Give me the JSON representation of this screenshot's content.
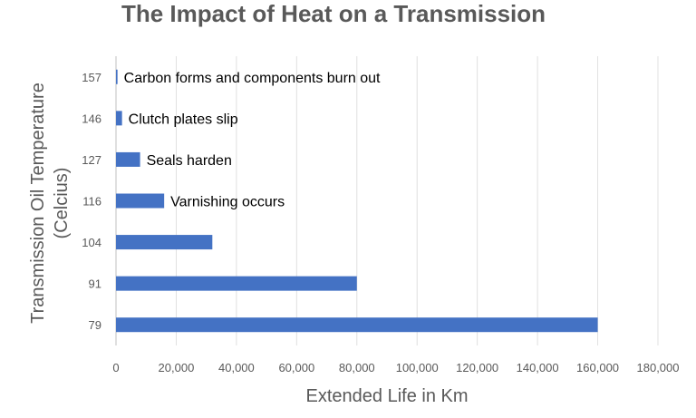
{
  "chart_data": {
    "type": "bar",
    "orientation": "horizontal",
    "title": "The Impact of Heat on a Transmission",
    "xlabel": "Extended Life in Km",
    "ylabel_lines": [
      "Transmission Oil Temperature",
      "(Celcius)"
    ],
    "categories": [
      "79",
      "91",
      "104",
      "116",
      "127",
      "146",
      "157"
    ],
    "values": [
      160000,
      80000,
      32000,
      16000,
      8000,
      2000,
      500
    ],
    "annotations": [
      "",
      "",
      "",
      "Varnishing occurs",
      "Seals harden",
      "Clutch plates slip",
      "Carbon forms and components burn out"
    ],
    "xlim": [
      0,
      180000
    ],
    "xticks": [
      0,
      20000,
      40000,
      60000,
      80000,
      100000,
      120000,
      140000,
      160000,
      180000
    ],
    "xtick_labels": [
      "0",
      "20,000",
      "40,000",
      "60,000",
      "80,000",
      "100,000",
      "120,000",
      "140,000",
      "160,000",
      "180,000"
    ],
    "grid": true,
    "bar_color": "#4472c4"
  }
}
